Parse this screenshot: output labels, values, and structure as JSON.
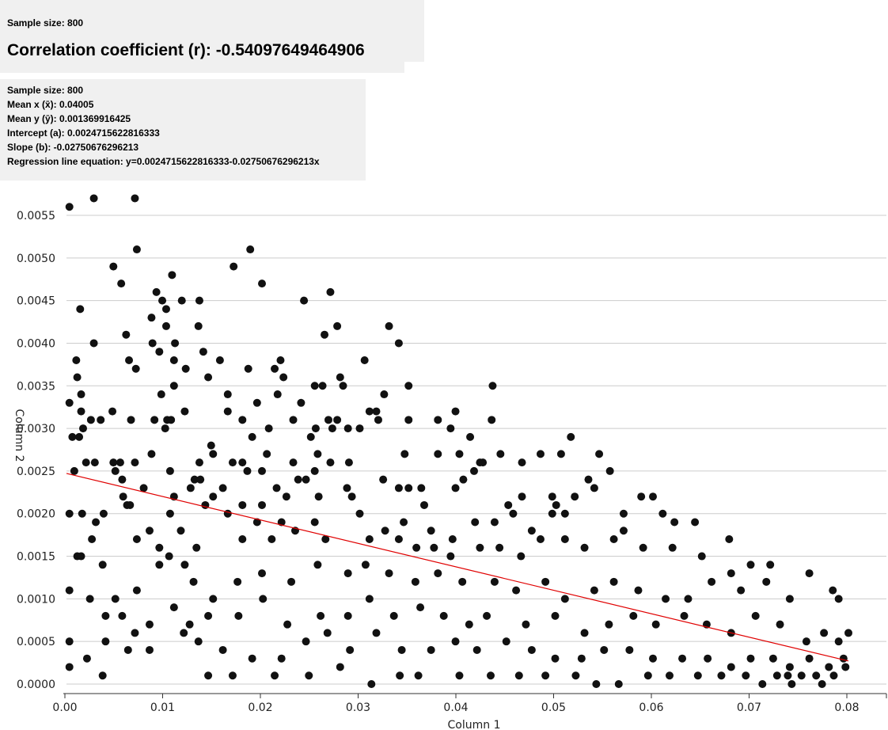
{
  "summary": {
    "sample_size_label": "Sample size: 800",
    "correlation_label": "Correlation coefficient (r): -0.54097649464906"
  },
  "stats": {
    "sample_size": "Sample size: 800",
    "mean_x": "Mean x (x̄): 0.04005",
    "mean_y": "Mean y (ȳ): 0.001369916425",
    "intercept": "Intercept (a): 0.0024715622816333",
    "slope": "Slope (b): -0.02750676296213",
    "equation": "Regression line equation: y=0.0024715622816333-0.02750676296213x"
  },
  "colors": {
    "point": "#111111",
    "regression": "#e00000",
    "grid": "#cccccc",
    "panel": "#f0f0f0"
  },
  "chart_data": {
    "type": "scatter",
    "xlabel": "Column 1",
    "ylabel": "Column 2",
    "xlim": [
      0,
      0.08
    ],
    "ylim": [
      0,
      0.0055
    ],
    "xticks": [
      "0.00",
      "0.01",
      "0.02",
      "0.03",
      "0.04",
      "0.05",
      "0.06",
      "0.07",
      "0.08"
    ],
    "yticks": [
      "0.0000",
      "0.0005",
      "0.0010",
      "0.0015",
      "0.0020",
      "0.0025",
      "0.0030",
      "0.0035",
      "0.0040",
      "0.0045",
      "0.0050",
      "0.0055"
    ],
    "grid": "horizontal",
    "regression": {
      "intercept": 0.0024715622816333,
      "slope": -0.02750676296213,
      "x_range": [
        0,
        0.08
      ]
    },
    "points": [
      [
        0.0003,
        0.0056
      ],
      [
        0.0028,
        0.0057
      ],
      [
        0.007,
        0.0057
      ],
      [
        0.0072,
        0.0051
      ],
      [
        0.0188,
        0.0051
      ],
      [
        0.0048,
        0.0049
      ],
      [
        0.0056,
        0.0047
      ],
      [
        0.0171,
        0.0049
      ],
      [
        0.02,
        0.0047
      ],
      [
        0.0108,
        0.0048
      ],
      [
        0.0092,
        0.0046
      ],
      [
        0.0098,
        0.0045
      ],
      [
        0.0102,
        0.0044
      ],
      [
        0.0118,
        0.0045
      ],
      [
        0.0136,
        0.0045
      ],
      [
        0.0014,
        0.0044
      ],
      [
        0.0087,
        0.0043
      ],
      [
        0.0135,
        0.0042
      ],
      [
        0.0243,
        0.0045
      ],
      [
        0.027,
        0.0046
      ],
      [
        0.0277,
        0.0042
      ],
      [
        0.0264,
        0.0041
      ],
      [
        0.033,
        0.0042
      ],
      [
        0.034,
        0.004
      ],
      [
        0.0061,
        0.0041
      ],
      [
        0.0102,
        0.0042
      ],
      [
        0.0088,
        0.004
      ],
      [
        0.0111,
        0.004
      ],
      [
        0.0028,
        0.004
      ],
      [
        0.0064,
        0.0038
      ],
      [
        0.0095,
        0.0039
      ],
      [
        0.011,
        0.0038
      ],
      [
        0.014,
        0.0039
      ],
      [
        0.0157,
        0.0038
      ],
      [
        0.001,
        0.0038
      ],
      [
        0.0011,
        0.0036
      ],
      [
        0.0071,
        0.0037
      ],
      [
        0.0122,
        0.0037
      ],
      [
        0.0145,
        0.0036
      ],
      [
        0.0186,
        0.0037
      ],
      [
        0.0213,
        0.0037
      ],
      [
        0.0219,
        0.0038
      ],
      [
        0.0222,
        0.0036
      ],
      [
        0.0305,
        0.0038
      ],
      [
        0.0436,
        0.0035
      ],
      [
        0.035,
        0.0035
      ],
      [
        0.028,
        0.0036
      ],
      [
        0.0283,
        0.0035
      ],
      [
        0.0254,
        0.0035
      ],
      [
        0.0262,
        0.0035
      ],
      [
        0.0015,
        0.0034
      ],
      [
        0.0003,
        0.0033
      ],
      [
        0.0097,
        0.0034
      ],
      [
        0.011,
        0.0035
      ],
      [
        0.0165,
        0.0034
      ],
      [
        0.0195,
        0.0033
      ],
      [
        0.0216,
        0.0034
      ],
      [
        0.024,
        0.0033
      ],
      [
        0.0325,
        0.0034
      ],
      [
        0.031,
        0.0032
      ],
      [
        0.0047,
        0.0032
      ],
      [
        0.0015,
        0.0032
      ],
      [
        0.0025,
        0.0031
      ],
      [
        0.0035,
        0.0031
      ],
      [
        0.0066,
        0.0031
      ],
      [
        0.009,
        0.0031
      ],
      [
        0.0103,
        0.0031
      ],
      [
        0.0107,
        0.0031
      ],
      [
        0.0121,
        0.0032
      ],
      [
        0.0165,
        0.0032
      ],
      [
        0.018,
        0.0031
      ],
      [
        0.0232,
        0.0031
      ],
      [
        0.0255,
        0.003
      ],
      [
        0.0268,
        0.0031
      ],
      [
        0.0277,
        0.0031
      ],
      [
        0.0317,
        0.0032
      ],
      [
        0.035,
        0.0031
      ],
      [
        0.038,
        0.0031
      ],
      [
        0.0398,
        0.0032
      ],
      [
        0.0435,
        0.0031
      ],
      [
        0.0006,
        0.0029
      ],
      [
        0.0017,
        0.003
      ],
      [
        0.0013,
        0.0029
      ],
      [
        0.0101,
        0.003
      ],
      [
        0.0148,
        0.0028
      ],
      [
        0.019,
        0.0029
      ],
      [
        0.0207,
        0.003
      ],
      [
        0.025,
        0.0029
      ],
      [
        0.0257,
        0.0027
      ],
      [
        0.0272,
        0.003
      ],
      [
        0.0288,
        0.003
      ],
      [
        0.03,
        0.003
      ],
      [
        0.0319,
        0.0031
      ],
      [
        0.0393,
        0.003
      ],
      [
        0.0413,
        0.0029
      ],
      [
        0.0516,
        0.0029
      ],
      [
        0.0545,
        0.0027
      ],
      [
        0.002,
        0.0026
      ],
      [
        0.0029,
        0.0026
      ],
      [
        0.0048,
        0.0026
      ],
      [
        0.0055,
        0.0026
      ],
      [
        0.007,
        0.0026
      ],
      [
        0.0087,
        0.0027
      ],
      [
        0.0136,
        0.0026
      ],
      [
        0.015,
        0.0027
      ],
      [
        0.017,
        0.0026
      ],
      [
        0.018,
        0.0026
      ],
      [
        0.0205,
        0.0027
      ],
      [
        0.0232,
        0.0026
      ],
      [
        0.027,
        0.0026
      ],
      [
        0.0289,
        0.0026
      ],
      [
        0.0346,
        0.0027
      ],
      [
        0.038,
        0.0027
      ],
      [
        0.0402,
        0.0027
      ],
      [
        0.0423,
        0.0026
      ],
      [
        0.0444,
        0.0027
      ],
      [
        0.0466,
        0.0026
      ],
      [
        0.0485,
        0.0027
      ],
      [
        0.0506,
        0.0027
      ],
      [
        0.0008,
        0.0025
      ],
      [
        0.005,
        0.0025
      ],
      [
        0.0057,
        0.0024
      ],
      [
        0.0106,
        0.0025
      ],
      [
        0.0131,
        0.0024
      ],
      [
        0.0185,
        0.0025
      ],
      [
        0.02,
        0.0025
      ],
      [
        0.0237,
        0.0024
      ],
      [
        0.0254,
        0.0025
      ],
      [
        0.0287,
        0.0023
      ],
      [
        0.0324,
        0.0024
      ],
      [
        0.034,
        0.0023
      ],
      [
        0.0398,
        0.0023
      ],
      [
        0.0417,
        0.0025
      ],
      [
        0.0426,
        0.0026
      ],
      [
        0.0534,
        0.0024
      ],
      [
        0.054,
        0.0023
      ],
      [
        0.0556,
        0.0025
      ],
      [
        0.0079,
        0.0023
      ],
      [
        0.0058,
        0.0022
      ],
      [
        0.0065,
        0.0021
      ],
      [
        0.011,
        0.0022
      ],
      [
        0.0127,
        0.0023
      ],
      [
        0.0137,
        0.0024
      ],
      [
        0.015,
        0.0022
      ],
      [
        0.016,
        0.0023
      ],
      [
        0.02,
        0.0021
      ],
      [
        0.0215,
        0.0023
      ],
      [
        0.0225,
        0.0022
      ],
      [
        0.0245,
        0.0024
      ],
      [
        0.0258,
        0.0022
      ],
      [
        0.0292,
        0.0022
      ],
      [
        0.035,
        0.0023
      ],
      [
        0.0363,
        0.0023
      ],
      [
        0.0366,
        0.0021
      ],
      [
        0.0406,
        0.0024
      ],
      [
        0.0452,
        0.0021
      ],
      [
        0.0466,
        0.0022
      ],
      [
        0.0497,
        0.0022
      ],
      [
        0.0501,
        0.0021
      ],
      [
        0.051,
        0.002
      ],
      [
        0.052,
        0.0022
      ],
      [
        0.0588,
        0.0022
      ],
      [
        0.06,
        0.0022
      ],
      [
        0.061,
        0.002
      ],
      [
        0.0003,
        0.002
      ],
      [
        0.0016,
        0.002
      ],
      [
        0.003,
        0.0019
      ],
      [
        0.0038,
        0.002
      ],
      [
        0.0062,
        0.0021
      ],
      [
        0.0085,
        0.0018
      ],
      [
        0.0106,
        0.002
      ],
      [
        0.0117,
        0.0018
      ],
      [
        0.0142,
        0.0021
      ],
      [
        0.0165,
        0.002
      ],
      [
        0.018,
        0.0021
      ],
      [
        0.0195,
        0.0019
      ],
      [
        0.022,
        0.0019
      ],
      [
        0.0254,
        0.0019
      ],
      [
        0.0265,
        0.0017
      ],
      [
        0.03,
        0.002
      ],
      [
        0.0345,
        0.0019
      ],
      [
        0.0373,
        0.0018
      ],
      [
        0.0395,
        0.0017
      ],
      [
        0.0418,
        0.0019
      ],
      [
        0.0438,
        0.0019
      ],
      [
        0.0457,
        0.002
      ],
      [
        0.0476,
        0.0018
      ],
      [
        0.0497,
        0.002
      ],
      [
        0.057,
        0.002
      ],
      [
        0.057,
        0.0018
      ],
      [
        0.0622,
        0.0019
      ],
      [
        0.0643,
        0.0019
      ],
      [
        0.0011,
        0.0015
      ],
      [
        0.0015,
        0.0015
      ],
      [
        0.0026,
        0.0017
      ],
      [
        0.0072,
        0.0017
      ],
      [
        0.0095,
        0.0016
      ],
      [
        0.0105,
        0.0015
      ],
      [
        0.0133,
        0.0016
      ],
      [
        0.018,
        0.0017
      ],
      [
        0.021,
        0.0017
      ],
      [
        0.0234,
        0.0018
      ],
      [
        0.031,
        0.0017
      ],
      [
        0.0326,
        0.0018
      ],
      [
        0.034,
        0.0017
      ],
      [
        0.0358,
        0.0016
      ],
      [
        0.0376,
        0.0016
      ],
      [
        0.0393,
        0.0015
      ],
      [
        0.0423,
        0.0016
      ],
      [
        0.0443,
        0.0016
      ],
      [
        0.0465,
        0.0015
      ],
      [
        0.0485,
        0.0017
      ],
      [
        0.051,
        0.0017
      ],
      [
        0.053,
        0.0016
      ],
      [
        0.056,
        0.0017
      ],
      [
        0.059,
        0.0016
      ],
      [
        0.062,
        0.0016
      ],
      [
        0.0678,
        0.0017
      ],
      [
        0.065,
        0.0015
      ],
      [
        0.068,
        0.0013
      ],
      [
        0.07,
        0.0014
      ],
      [
        0.072,
        0.0014
      ],
      [
        0.0003,
        0.0011
      ],
      [
        0.0037,
        0.0014
      ],
      [
        0.005,
        0.001
      ],
      [
        0.0072,
        0.0011
      ],
      [
        0.0095,
        0.0014
      ],
      [
        0.0121,
        0.0014
      ],
      [
        0.013,
        0.0012
      ],
      [
        0.015,
        0.001
      ],
      [
        0.0175,
        0.0012
      ],
      [
        0.02,
        0.0013
      ],
      [
        0.023,
        0.0012
      ],
      [
        0.0257,
        0.0014
      ],
      [
        0.0288,
        0.0013
      ],
      [
        0.0306,
        0.0014
      ],
      [
        0.033,
        0.0013
      ],
      [
        0.0357,
        0.0012
      ],
      [
        0.038,
        0.0013
      ],
      [
        0.0405,
        0.0012
      ],
      [
        0.0438,
        0.0012
      ],
      [
        0.046,
        0.0011
      ],
      [
        0.049,
        0.0012
      ],
      [
        0.051,
        0.001
      ],
      [
        0.054,
        0.0011
      ],
      [
        0.056,
        0.0012
      ],
      [
        0.0585,
        0.0011
      ],
      [
        0.0613,
        0.001
      ],
      [
        0.0636,
        0.001
      ],
      [
        0.066,
        0.0012
      ],
      [
        0.069,
        0.0011
      ],
      [
        0.0716,
        0.0012
      ],
      [
        0.074,
        0.001
      ],
      [
        0.076,
        0.0013
      ],
      [
        0.0784,
        0.0011
      ],
      [
        0.079,
        0.001
      ],
      [
        0.0024,
        0.001
      ],
      [
        0.004,
        0.0008
      ],
      [
        0.0057,
        0.0008
      ],
      [
        0.0085,
        0.0007
      ],
      [
        0.011,
        0.0009
      ],
      [
        0.0126,
        0.0007
      ],
      [
        0.0145,
        0.0008
      ],
      [
        0.0176,
        0.0008
      ],
      [
        0.0201,
        0.001
      ],
      [
        0.0226,
        0.0007
      ],
      [
        0.026,
        0.0008
      ],
      [
        0.0288,
        0.0008
      ],
      [
        0.031,
        0.001
      ],
      [
        0.0335,
        0.0008
      ],
      [
        0.0362,
        0.0009
      ],
      [
        0.0386,
        0.0008
      ],
      [
        0.0412,
        0.0007
      ],
      [
        0.043,
        0.0008
      ],
      [
        0.047,
        0.0007
      ],
      [
        0.05,
        0.0008
      ],
      [
        0.053,
        0.0006
      ],
      [
        0.0555,
        0.0007
      ],
      [
        0.058,
        0.0008
      ],
      [
        0.0603,
        0.0007
      ],
      [
        0.0632,
        0.0008
      ],
      [
        0.0655,
        0.0007
      ],
      [
        0.068,
        0.0006
      ],
      [
        0.0705,
        0.0008
      ],
      [
        0.073,
        0.0007
      ],
      [
        0.0757,
        0.0005
      ],
      [
        0.0775,
        0.0006
      ],
      [
        0.079,
        0.0005
      ],
      [
        0.08,
        0.0006
      ],
      [
        0.0003,
        0.0005
      ],
      [
        0.0021,
        0.0003
      ],
      [
        0.004,
        0.0005
      ],
      [
        0.0063,
        0.0004
      ],
      [
        0.007,
        0.0006
      ],
      [
        0.0085,
        0.0004
      ],
      [
        0.012,
        0.0006
      ],
      [
        0.0135,
        0.0005
      ],
      [
        0.016,
        0.0004
      ],
      [
        0.019,
        0.0003
      ],
      [
        0.022,
        0.0003
      ],
      [
        0.0245,
        0.0005
      ],
      [
        0.0267,
        0.0006
      ],
      [
        0.029,
        0.0004
      ],
      [
        0.0317,
        0.0006
      ],
      [
        0.0343,
        0.0004
      ],
      [
        0.0373,
        0.0004
      ],
      [
        0.0398,
        0.0005
      ],
      [
        0.042,
        0.0004
      ],
      [
        0.045,
        0.0005
      ],
      [
        0.0476,
        0.0004
      ],
      [
        0.05,
        0.0003
      ],
      [
        0.0527,
        0.0003
      ],
      [
        0.055,
        0.0004
      ],
      [
        0.0576,
        0.0004
      ],
      [
        0.06,
        0.0003
      ],
      [
        0.063,
        0.0003
      ],
      [
        0.0656,
        0.0003
      ],
      [
        0.068,
        0.0002
      ],
      [
        0.07,
        0.0003
      ],
      [
        0.0723,
        0.0003
      ],
      [
        0.074,
        0.0002
      ],
      [
        0.076,
        0.0003
      ],
      [
        0.078,
        0.0002
      ],
      [
        0.0795,
        0.0003
      ],
      [
        0.0003,
        0.0002
      ],
      [
        0.0037,
        0.0001
      ],
      [
        0.0145,
        0.0001
      ],
      [
        0.017,
        0.0001
      ],
      [
        0.0213,
        0.0001
      ],
      [
        0.0248,
        0.0001
      ],
      [
        0.028,
        0.0002
      ],
      [
        0.0312,
        0.0
      ],
      [
        0.0341,
        0.0001
      ],
      [
        0.036,
        0.0001
      ],
      [
        0.0402,
        0.0001
      ],
      [
        0.0434,
        0.0001
      ],
      [
        0.0463,
        0.0001
      ],
      [
        0.049,
        0.0001
      ],
      [
        0.0521,
        0.0001
      ],
      [
        0.0542,
        0.0
      ],
      [
        0.0565,
        0.0
      ],
      [
        0.0595,
        0.0001
      ],
      [
        0.0617,
        0.0001
      ],
      [
        0.0646,
        0.0001
      ],
      [
        0.067,
        0.0001
      ],
      [
        0.0695,
        0.0001
      ],
      [
        0.0712,
        0.0
      ],
      [
        0.0727,
        0.0001
      ],
      [
        0.0738,
        0.0001
      ],
      [
        0.0752,
        0.0001
      ],
      [
        0.0767,
        0.0001
      ],
      [
        0.0773,
        0.0
      ],
      [
        0.0785,
        0.0001
      ],
      [
        0.0797,
        0.0002
      ],
      [
        0.0742,
        0.0
      ]
    ]
  }
}
